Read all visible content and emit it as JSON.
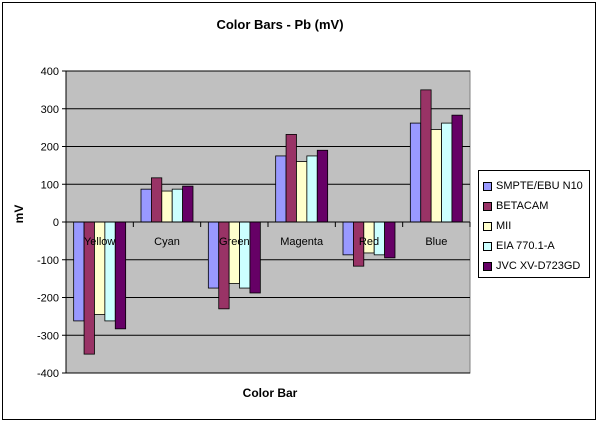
{
  "chart_data": {
    "type": "bar",
    "title": "Color Bars - Pb (mV)",
    "xlabel": "Color Bar",
    "ylabel": "mV",
    "ylim": [
      -400,
      400
    ],
    "yticks": [
      400,
      300,
      200,
      100,
      0,
      -100,
      -200,
      -300,
      -400
    ],
    "grid": true,
    "legend_position": "right",
    "categories": [
      "Yellow",
      "Cyan",
      "Green",
      "Magenta",
      "Red",
      "Blue"
    ],
    "series": [
      {
        "name": "SMPTE/EBU N10",
        "color": "#9999ff",
        "values": [
          -262,
          87,
          -175,
          175,
          -87,
          262
        ]
      },
      {
        "name": "BETACAM",
        "color": "#993366",
        "values": [
          -350,
          117,
          -230,
          232,
          -117,
          350
        ]
      },
      {
        "name": "MII",
        "color": "#ffffcc",
        "values": [
          -245,
          82,
          -163,
          160,
          -82,
          245
        ]
      },
      {
        "name": "EIA 770.1-A",
        "color": "#ccffff",
        "values": [
          -262,
          87,
          -175,
          175,
          -87,
          262
        ]
      },
      {
        "name": "JVC XV-D723GD",
        "color": "#660066",
        "values": [
          -283,
          95,
          -188,
          190,
          -95,
          283
        ]
      }
    ],
    "plot_background": "#c0c0c0"
  }
}
